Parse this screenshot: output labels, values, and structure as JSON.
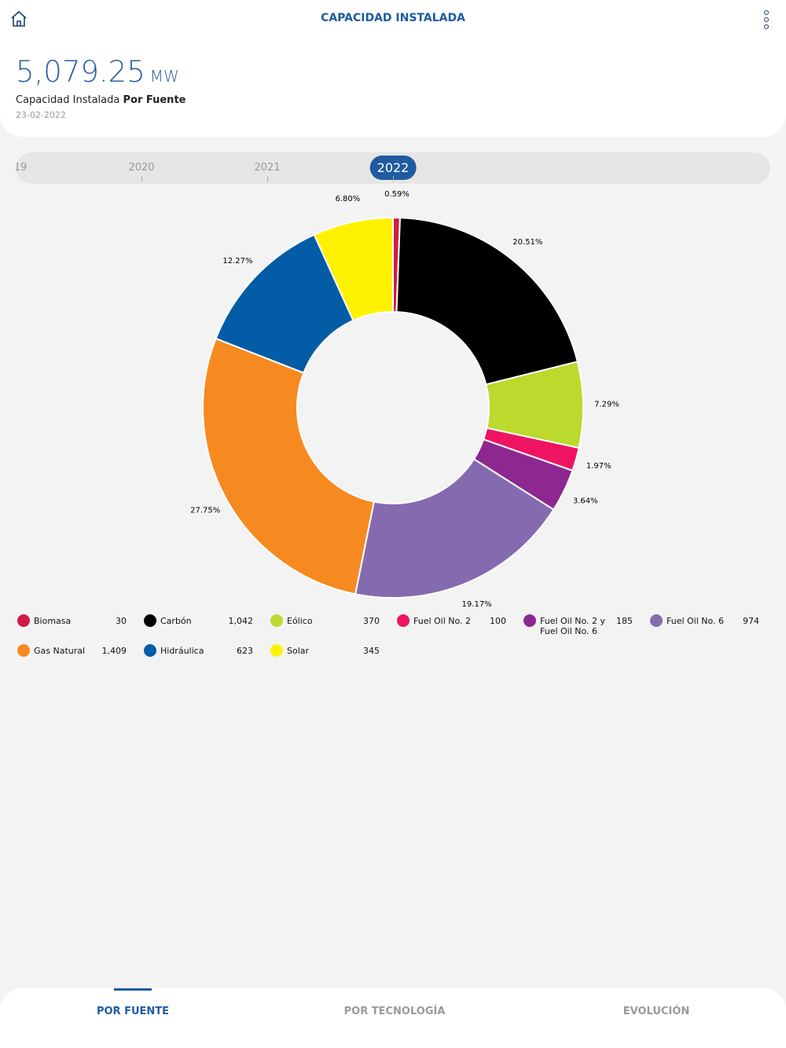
{
  "header": {
    "title": "CAPACIDAD INSTALADA"
  },
  "summary": {
    "total": "5,079.25",
    "unit": "MW",
    "label": "Capacidad Instalada",
    "label_bold": "Por Fuente",
    "date": "23-02-2022"
  },
  "year_selector": {
    "years": [
      "19",
      "2020",
      "2021",
      "2022"
    ],
    "selected": 3
  },
  "chart_data": {
    "type": "pie",
    "categories": [
      "Biomasa",
      "Carbón",
      "Eólico",
      "Fuel Oil No. 2",
      "Fuel Oil No. 2 y Fuel Oil No. 6",
      "Fuel Oil No. 6",
      "Gas Natural",
      "Hidráulica",
      "Solar"
    ],
    "values": [
      0.59,
      20.51,
      7.29,
      1.97,
      3.64,
      19.17,
      27.75,
      12.27,
      6.8
    ],
    "value_labels": [
      "0.59%",
      "20.51%",
      "7.29%",
      "1.97%",
      "3.64%",
      "19.17%",
      "27.75%",
      "12.27%",
      "6.80%"
    ],
    "colors": [
      "#d01c44",
      "#000000",
      "#bcd92e",
      "#ee1461",
      "#8c2890",
      "#846bb0",
      "#f68a20",
      "#045ca6",
      "#fff200"
    ],
    "legend_values": [
      "30",
      "1,042",
      "370",
      "100",
      "185",
      "974",
      "1,409",
      "623",
      "345"
    ]
  },
  "tabs": {
    "items": [
      "POR FUENTE",
      "POR TECNOLOGÍA",
      "EVOLUCIÓN"
    ],
    "selected": 0
  }
}
